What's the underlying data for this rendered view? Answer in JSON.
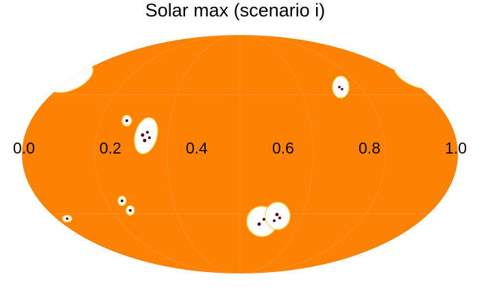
{
  "title": "Solar max (scenario i)",
  "axis_labels": [
    {
      "value": 0.0,
      "label": "0.0"
    },
    {
      "value": 0.2,
      "label": "0.2"
    },
    {
      "value": 0.4,
      "label": "0.4"
    },
    {
      "value": 0.6,
      "label": "0.6"
    },
    {
      "value": 0.8,
      "label": "0.8"
    },
    {
      "value": 1.0,
      "label": "1.0"
    }
  ],
  "range": [
    0.0,
    1.0
  ]
}
